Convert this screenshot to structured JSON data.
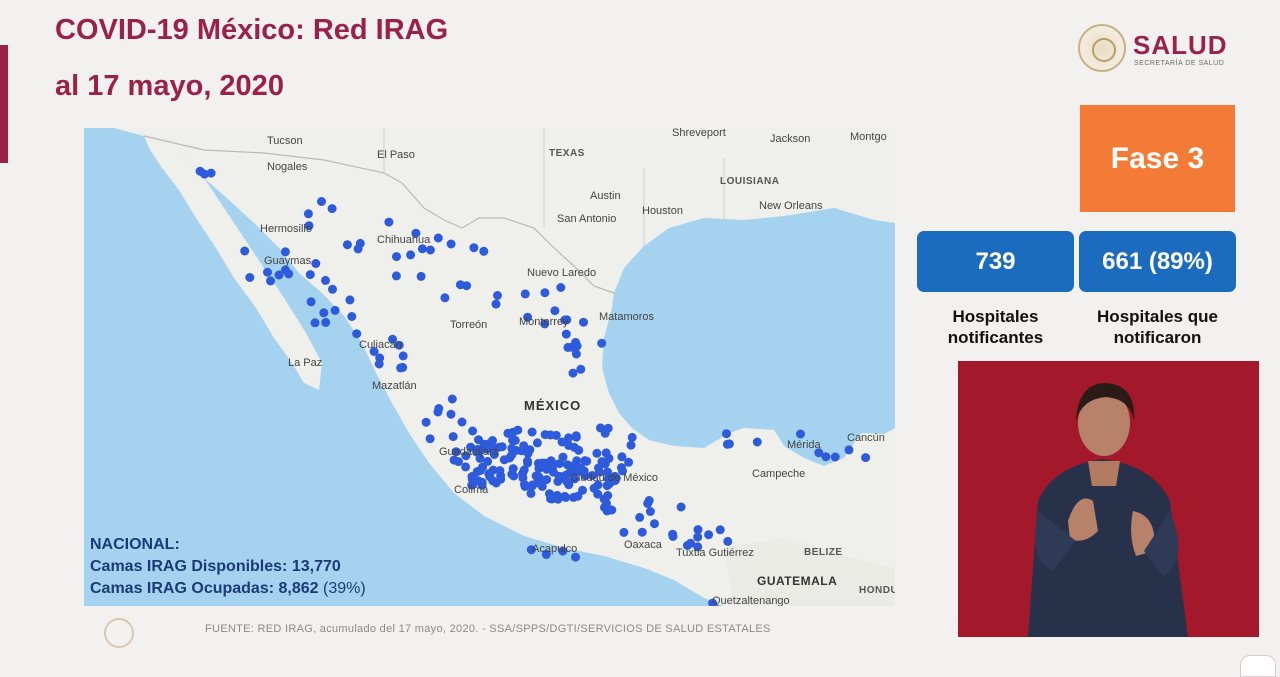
{
  "header": {
    "title_line1": "COVID-19 México: Red IRAG",
    "title_line2": "al 17 mayo, 2020"
  },
  "logo": {
    "name": "SALUD",
    "subtitle": "SECRETARÍA DE SALUD"
  },
  "phase": {
    "label": "Fase 3"
  },
  "stats": [
    {
      "value": "739",
      "label_line1": "Hospitales",
      "label_line2": "notificantes"
    },
    {
      "value": "661 (89%)",
      "label_line1": "Hospitales que",
      "label_line2": "notificaron"
    }
  ],
  "map": {
    "labels": {
      "tucson": "Tucson",
      "shreveport": "Shreveport",
      "jackson": "Jackson",
      "montgomery": "Montgo",
      "el_paso": "El Paso",
      "texas": "TEXAS",
      "louisiana": "LOUISIANA",
      "austin": "Austin",
      "houston": "Houston",
      "new_orleans": "New Orleans",
      "san_antonio": "San Antonio",
      "nogales": "Nogales",
      "hermosillo": "Hermosillo",
      "chihuahua": "Chihuahua",
      "nuevo_laredo": "Nuevo Laredo",
      "guaymas": "Guaymas",
      "torreon": "Torreón",
      "monterrey": "Monterrey",
      "matamoros": "Matamoros",
      "culiacan": "Culiacán",
      "la_paz": "La Paz",
      "mazatlan": "Mazatlán",
      "mexico": "MÉXICO",
      "guadalajara": "Guadalajara",
      "ciudad_de_mexico": "Ciudad de México",
      "colima": "Colima",
      "merida": "Mérida",
      "cancun": "Cancún",
      "campeche": "Campeche",
      "acapulco": "Acapulco",
      "oaxaca": "Oaxaca",
      "tuxtla": "Tuxtla Gutiérrez",
      "belize": "BELIZE",
      "guatemala": "GUATEMALA",
      "quetzaltenango": "Quetzaltenango",
      "hondu": "HONDU"
    },
    "hospital_dot_color": "#2e5bdb"
  },
  "summary": {
    "heading": "NACIONAL:",
    "available_label": "Camas IRAG Disponibles:",
    "available_value": "13,770",
    "occupied_label": "Camas IRAG Ocupadas:",
    "occupied_value": "8,862",
    "occupied_pct": "(39%)"
  },
  "footer": {
    "source": "FUENTE: RED IRAG, acumulado del 17 mayo, 2020. -  SSA/SPPS/DGTI/SERVICIOS DE SALUD ESTATALES"
  },
  "colors": {
    "brand": "#9b2247",
    "phase": "#f47b36",
    "stat_box": "#1b6cbf",
    "interpreter_bg": "#a3182a"
  }
}
